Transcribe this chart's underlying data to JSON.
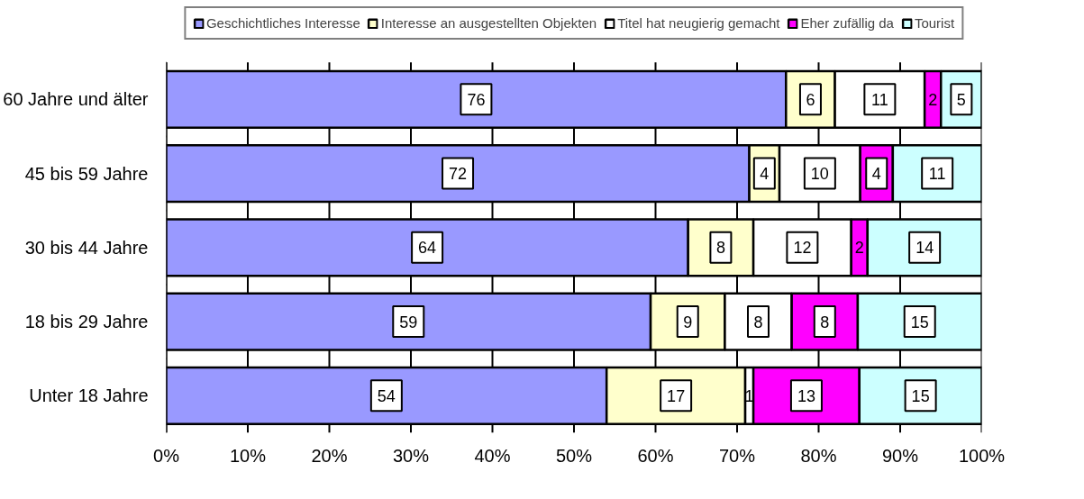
{
  "chart_data": {
    "type": "bar",
    "orientation": "horizontal",
    "stacked": true,
    "categories": [
      "60 Jahre und älter",
      "45 bis 59 Jahre",
      "30 bis 44 Jahre",
      "18 bis 29 Jahre",
      "Unter 18 Jahre"
    ],
    "series": [
      {
        "name": "Geschichtliches Interesse",
        "color": "#9999ff",
        "values": [
          76,
          71.5,
          64,
          59.4,
          54
        ],
        "value_labels": [
          "76",
          "72",
          "64",
          "59",
          "54"
        ]
      },
      {
        "name": "Interesse an ausgestellten Objekten",
        "color": "#ffffcc",
        "values": [
          6,
          3.7,
          8,
          9.1,
          17
        ],
        "value_labels": [
          "6",
          "4",
          "8",
          "9",
          "17"
        ]
      },
      {
        "name": "Titel hat neugierig gemacht",
        "color": "#ffffff",
        "values": [
          11,
          9.9,
          12,
          8.2,
          1
        ],
        "value_labels": [
          "11",
          "10",
          "12",
          "8",
          "1"
        ]
      },
      {
        "name": "Eher zufällig da",
        "color": "#ff00ff",
        "values": [
          2,
          4.0,
          2,
          8.1,
          13
        ],
        "value_labels": [
          "2",
          "4",
          "2",
          "8",
          "13"
        ]
      },
      {
        "name": "Tourist",
        "color": "#ccffff",
        "values": [
          5,
          10.9,
          14,
          15.2,
          15
        ],
        "value_labels": [
          "5",
          "11",
          "14",
          "15",
          "15"
        ]
      }
    ],
    "xlim": [
      0,
      100
    ],
    "xticks": [
      {
        "value": 0,
        "label": "0%"
      },
      {
        "value": 10,
        "label": "10%"
      },
      {
        "value": 20,
        "label": "20%"
      },
      {
        "value": 30,
        "label": "30%"
      },
      {
        "value": 40,
        "label": "40%"
      },
      {
        "value": 50,
        "label": "50%"
      },
      {
        "value": 60,
        "label": "60%"
      },
      {
        "value": 70,
        "label": "70%"
      },
      {
        "value": 80,
        "label": "80%"
      },
      {
        "value": 90,
        "label": "90%"
      },
      {
        "value": 100,
        "label": "100%"
      }
    ],
    "grid": "x",
    "legend": "top"
  }
}
